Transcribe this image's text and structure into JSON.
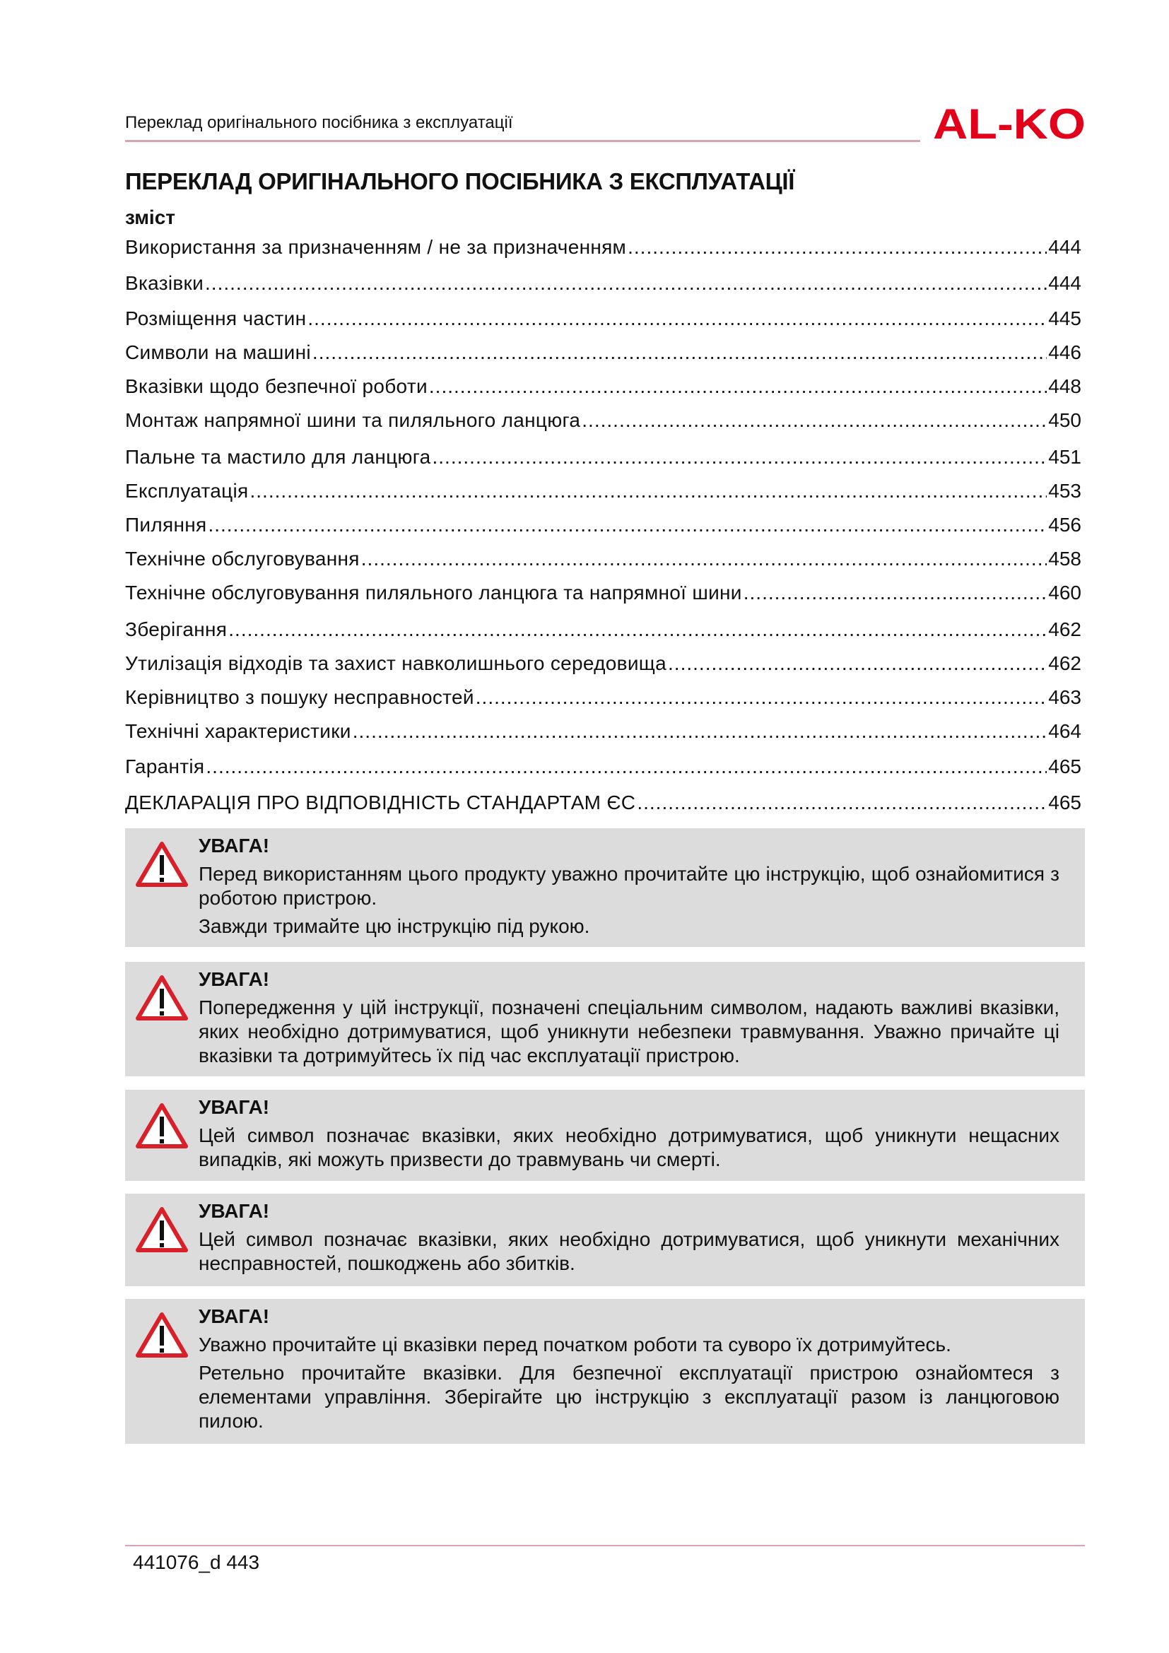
{
  "header": {
    "text": "Переклад оригінального посібника з експлуатації",
    "logo": "AL-KO",
    "brand_color": "#e2001a"
  },
  "title": "ПЕРЕКЛАД ОРИГІНАЛЬНОГО ПОСІБНИКА З ЕКСПЛУАТАЦІЇ",
  "subtitle": "зміст",
  "toc": [
    {
      "label": "Використання за призначенням / не за призначенням",
      "page": "444"
    },
    {
      "label": "Вказівки",
      "page": "444"
    },
    {
      "label": "Розміщення частин",
      "page": "445"
    },
    {
      "label": "Символи на машині",
      "page": "446"
    },
    {
      "label": "Вказівки щодо безпечної роботи",
      "page": "448"
    },
    {
      "label": "Монтаж напрямної шини та пиляльного ланцюга",
      "page": "450"
    },
    {
      "label": "Пальне та мастило для ланцюга",
      "page": "451"
    },
    {
      "label": "Експлуатація",
      "page": "453"
    },
    {
      "label": "Пиляння",
      "page": "456"
    },
    {
      "label": "Технічне обслуговування",
      "page": "458"
    },
    {
      "label": "Технічне обслуговування пиляльного ланцюга та напрямної шини",
      "page": "460"
    },
    {
      "label": "Зберігання",
      "page": "462"
    },
    {
      "label": "Утилізація відходів та захист навколишнього середовища",
      "page": "462"
    },
    {
      "label": "Керівництво з пошуку несправностей",
      "page": "463"
    },
    {
      "label": "Технічні характеристики",
      "page": "464"
    },
    {
      "label": "Гарантія",
      "page": "465"
    },
    {
      "label": "ДЕКЛАРАЦІЯ ПРО ВІДПОВІДНІСТЬ СТАНДАРТАМ ЄС",
      "page": "465"
    }
  ],
  "warnings": [
    {
      "heading": "УВАГА!",
      "paragraphs": [
        "Перед використанням цього продукту уважно прочитайте цю інструкцію, щоб ознайомитися з роботою пристрою.",
        "Завжди тримайте цю інструкцію під рукою."
      ]
    },
    {
      "heading": "УВАГА!",
      "paragraphs": [
        "Попередження у цій інструкції, позначені спеціальним символом, надають важливі вказівки, яких необхідно дотримуватися, щоб уникнути небезпеки травмування. Уважно причайте ці вказівки та дотримуйтесь їх під час експлуатації пристрою."
      ]
    },
    {
      "heading": "УВАГА!",
      "paragraphs": [
        "Цей символ позначає вказівки, яких необхідно дотримуватися, щоб уникнути  нещасних випадків, які можуть призвести до травмувань чи смерті."
      ]
    },
    {
      "heading": "УВАГА!",
      "paragraphs": [
        "Цей символ позначає вказівки, яких необхідно дотримуватися, щоб уникнути механічних несправностей, пошкоджень або збитків."
      ]
    },
    {
      "heading": "УВАГА!",
      "paragraphs": [
        "Уважно прочитайте ці вказівки перед початком роботи та суворо їх дотримуйтесь.",
        "Ретельно прочитайте вказівки. Для безпечної експлуатації пристрою ознайомтеся з елементами управління. Зберігайте цю інструкцію з експлуатації разом із ланцюговою пилою."
      ]
    }
  ],
  "footer": {
    "text": "441076_d 443"
  }
}
